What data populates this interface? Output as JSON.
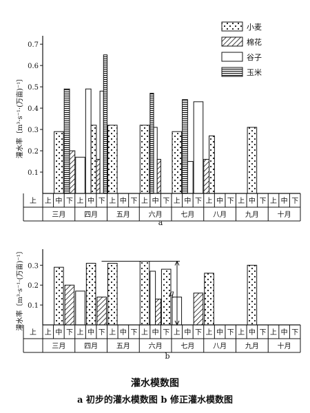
{
  "chart_data": [
    {
      "panel": "a",
      "type": "bar",
      "ylabel": "灌水率〔m³·s⁻¹·(万亩)⁻¹〕",
      "yticks": [
        "0.1",
        "0.2",
        "0.3",
        "0.4",
        "0.5",
        "0.6",
        "0.7"
      ],
      "ylim": [
        0,
        0.72
      ],
      "decades": [
        "上",
        "中",
        "下"
      ],
      "months": [
        "三月",
        "四月",
        "五月",
        "六月",
        "七月",
        "八月",
        "九月",
        "十月"
      ],
      "legend": [
        {
          "name": "小麦",
          "pattern": "dots"
        },
        {
          "name": "棉花",
          "pattern": "hatch"
        },
        {
          "name": "谷子",
          "pattern": "blank"
        },
        {
          "name": "玉米",
          "pattern": "stripes"
        }
      ],
      "bars": [
        {
          "crop": "小麦",
          "month": 0,
          "dec": 1,
          "value": 0.29
        },
        {
          "crop": "玉米",
          "month": 0,
          "dec": 2,
          "value": 0.49
        },
        {
          "crop": "棉花",
          "month": 0,
          "dec": 2,
          "value": 0.2
        },
        {
          "crop": "谷子",
          "month": 1,
          "dec": 0,
          "value": 0.17
        },
        {
          "crop": "谷子",
          "month": 1,
          "dec": 1,
          "value": 0.49
        },
        {
          "crop": "小麦",
          "month": 1,
          "dec": 1,
          "value": 0.32
        },
        {
          "crop": "棉花",
          "month": 1,
          "dec": 2,
          "value": 0.16
        },
        {
          "crop": "谷子",
          "month": 1,
          "dec": 2,
          "value": 0.48
        },
        {
          "crop": "玉米",
          "month": 1,
          "dec": 2,
          "value": 0.65
        },
        {
          "crop": "小麦",
          "month": 2,
          "dec": 0,
          "value": 0.32
        },
        {
          "crop": "小麦",
          "month": 3,
          "dec": 0,
          "value": 0.32
        },
        {
          "crop": "玉米",
          "month": 3,
          "dec": 1,
          "value": 0.47
        },
        {
          "crop": "谷子",
          "month": 3,
          "dec": 1,
          "value": 0.31
        },
        {
          "crop": "棉花",
          "month": 3,
          "dec": 1,
          "value": 0.16
        },
        {
          "crop": "小麦",
          "month": 4,
          "dec": 0,
          "value": 0.29
        },
        {
          "crop": "玉米",
          "month": 4,
          "dec": 1,
          "value": 0.44
        },
        {
          "crop": "谷子",
          "month": 4,
          "dec": 1,
          "value": 0.15
        },
        {
          "crop": "谷子",
          "month": 4,
          "dec": 2,
          "value": 0.43
        },
        {
          "crop": "棉花",
          "month": 5,
          "dec": 0,
          "value": 0.16
        },
        {
          "crop": "小麦",
          "month": 5,
          "dec": 0,
          "value": 0.27
        },
        {
          "crop": "小麦",
          "month": 6,
          "dec": 1,
          "value": 0.31
        }
      ]
    },
    {
      "panel": "b",
      "type": "bar",
      "ylabel": "灌水率〔m³·s⁻¹·(万亩)⁻¹〕",
      "yticks": [
        "0.1",
        "0.2",
        "0.3"
      ],
      "ylim": [
        0,
        0.36
      ],
      "months": [
        "三月",
        "四月",
        "五月",
        "六月",
        "七月",
        "八月",
        "九月",
        "十月"
      ],
      "annotation": "q",
      "bars": [
        {
          "crop": "小麦",
          "month": 0,
          "dec": 1,
          "value": 0.29
        },
        {
          "crop": "棉花",
          "month": 0,
          "dec": 2,
          "value": 0.2
        },
        {
          "crop": "谷子",
          "month": 1,
          "dec": 0,
          "value": 0.17
        },
        {
          "crop": "小麦",
          "month": 1,
          "dec": 1,
          "value": 0.31
        },
        {
          "crop": "棉花",
          "month": 1,
          "dec": 2,
          "value": 0.14
        },
        {
          "crop": "小麦",
          "month": 2,
          "dec": 0,
          "value": 0.31
        },
        {
          "crop": "小麦",
          "month": 3,
          "dec": 0,
          "value": 0.32
        },
        {
          "crop": "谷子",
          "month": 3,
          "dec": 1,
          "value": 0.27
        },
        {
          "crop": "棉花",
          "month": 3,
          "dec": 1,
          "value": 0.13
        },
        {
          "crop": "小麦",
          "month": 3,
          "dec": 2,
          "value": 0.28
        },
        {
          "crop": "谷子",
          "month": 4,
          "dec": 0,
          "value": 0.14
        },
        {
          "crop": "棉花",
          "month": 4,
          "dec": 2,
          "value": 0.16
        },
        {
          "crop": "小麦",
          "month": 5,
          "dec": 0,
          "value": 0.26
        },
        {
          "crop": "小麦",
          "month": 6,
          "dec": 1,
          "value": 0.3
        }
      ]
    }
  ],
  "labels": {
    "panel_a": "a",
    "panel_b": "b",
    "figure_title": "灌水模数图",
    "figure_subtitle": "a 初步的灌水模数图  b 修正灌水模数图"
  }
}
